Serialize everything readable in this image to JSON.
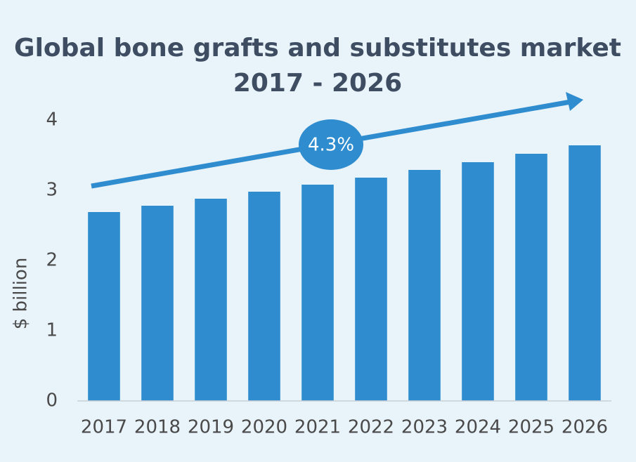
{
  "chart_data": {
    "type": "bar",
    "title": [
      "Global bone grafts and substitutes market",
      "2017 - 2026"
    ],
    "ylabel": "$ billion",
    "annotation": "4.3%",
    "categories": [
      "2017",
      "2018",
      "2019",
      "2020",
      "2021",
      "2022",
      "2023",
      "2024",
      "2025",
      "2026"
    ],
    "values": [
      2.69,
      2.78,
      2.88,
      2.98,
      3.08,
      3.18,
      3.29,
      3.4,
      3.52,
      3.64
    ],
    "color": "#2f8dcf",
    "ylim": [
      0,
      4
    ],
    "yticks": [
      0,
      1,
      2,
      3,
      4
    ],
    "grid": false
  }
}
